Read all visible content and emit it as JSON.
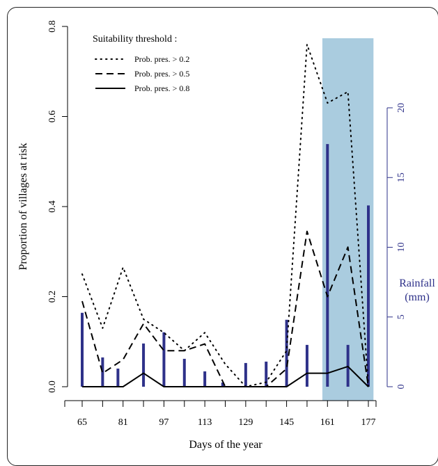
{
  "chart_data": {
    "type": "line",
    "xlabel": "Days of the year",
    "ylabel": "Proportion of villages at risk",
    "y2label_line1": "Rainfall",
    "y2label_line2": "(mm)",
    "xlim": [
      60,
      180
    ],
    "ylim": [
      0,
      0.8
    ],
    "y2lim": [
      0,
      20
    ],
    "x_ticks": [
      65,
      73,
      81,
      89,
      97,
      105,
      113,
      121,
      129,
      137,
      145,
      153,
      161,
      169,
      177
    ],
    "x_tick_labels": [
      "65",
      "",
      "81",
      "",
      "97",
      "",
      "113",
      "",
      "129",
      "",
      "145",
      "",
      "161",
      "",
      "177"
    ],
    "y_ticks": [
      0.0,
      0.2,
      0.4,
      0.6,
      0.8
    ],
    "y_tick_labels": [
      "0.0",
      "0.2",
      "0.4",
      "0.6",
      "0.8"
    ],
    "y2_ticks": [
      0,
      5,
      10,
      15,
      20
    ],
    "y2_tick_labels": [
      "0",
      "5",
      "10",
      "15",
      "20"
    ],
    "shaded_region": {
      "x": [
        159,
        179
      ],
      "color": "#aaccdf"
    },
    "legend": {
      "title": "Suitability threshold :",
      "placement": "top-left",
      "entries": [
        {
          "label": "Prob. pres. > 0.2",
          "style": "dotted"
        },
        {
          "label": "Prob. pres. > 0.5",
          "style": "dashed"
        },
        {
          "label": "Prob. pres. > 0.8",
          "style": "solid"
        }
      ]
    },
    "x": [
      65,
      73,
      81,
      89,
      97,
      105,
      113,
      121,
      129,
      137,
      145,
      153,
      161,
      169,
      177
    ],
    "series": [
      {
        "name": "Prob. pres. > 0.2",
        "style": "dotted",
        "values": [
          0.25,
          0.13,
          0.265,
          0.15,
          0.12,
          0.08,
          0.12,
          0.05,
          0.0,
          0.01,
          0.08,
          0.76,
          0.63,
          0.655,
          0.0
        ]
      },
      {
        "name": "Prob. pres. > 0.5",
        "style": "dashed",
        "values": [
          0.19,
          0.03,
          0.06,
          0.14,
          0.08,
          0.08,
          0.095,
          0.0,
          0.0,
          0.0,
          0.04,
          0.345,
          0.2,
          0.31,
          0.0
        ]
      },
      {
        "name": "Prob. pres. > 0.8",
        "style": "solid",
        "values": [
          0.0,
          0.0,
          0.0,
          0.03,
          0.0,
          0.0,
          0.0,
          0.0,
          0.0,
          0.0,
          0.0,
          0.03,
          0.03,
          0.045,
          0.0
        ]
      }
    ],
    "rainfall": {
      "color": "#2e3189",
      "x": [
        65,
        73,
        79,
        89,
        97,
        105,
        113,
        120,
        129,
        137,
        145,
        153,
        161,
        169,
        177
      ],
      "values": [
        5.3,
        2.1,
        1.3,
        3.1,
        3.9,
        2.0,
        1.1,
        0.3,
        1.7,
        1.8,
        4.8,
        3.0,
        17.4,
        3.0,
        13.0
      ]
    }
  }
}
